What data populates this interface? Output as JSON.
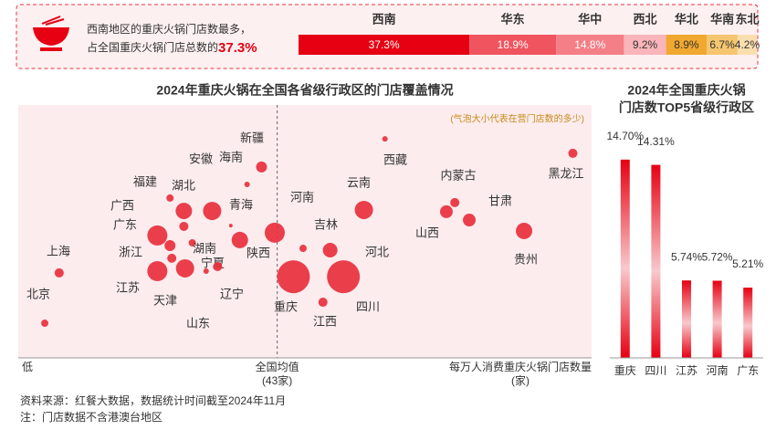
{
  "banner": {
    "lines": [
      "西南地区的重庆火锅门店数最多，",
      "占全国重庆火锅门店总数的"
    ],
    "highlight": "37.3%"
  },
  "chart_data": [
    {
      "type": "stacked_bar",
      "categories": [
        "西南",
        "华东",
        "华中",
        "西北",
        "华北",
        "华南",
        "东北"
      ],
      "values": [
        37.3,
        18.9,
        14.8,
        9.2,
        8.9,
        6.7,
        4.2
      ],
      "value_labels": [
        "37.3%",
        "18.9%",
        "14.8%",
        "9.2%",
        "8.9%",
        "6.7%",
        "4.2%"
      ],
      "colors": [
        "#e60012",
        "#f0545e",
        "#f47f86",
        "#f9b5b9",
        "#f0a830",
        "#f5c66f",
        "#fadfae"
      ],
      "xlim": [
        0,
        100
      ]
    },
    {
      "type": "bubble",
      "title": "2024年重庆火锅在全国各省级行政区的门店覆盖情况",
      "subtitle": "(气泡大小代表在营门店数的多少)",
      "labels": [
        "北京",
        "上海",
        "新疆",
        "海南",
        "安徽",
        "湖北",
        "福建",
        "广西",
        "广东",
        "浙江",
        "湖南",
        "江苏",
        "山东",
        "天津",
        "宁夏",
        "辽宁",
        "青海",
        "陕西",
        "河南",
        "吉林",
        "河北",
        "重庆",
        "四川",
        "江西",
        "云南",
        "西藏",
        "内蒙古",
        "山西",
        "甘肃",
        "黑龙江",
        "贵州"
      ],
      "x": [
        4.4,
        6.8,
        40.4,
        38.0,
        32.2,
        27.5,
        25.2,
        27.5,
        23.1,
        25.2,
        28.9,
        23.1,
        27.7,
        25.5,
        31.2,
        33.1,
        35.3,
        36.8,
        42.6,
        47.3,
        51.8,
        45.7,
        54.0,
        50.6,
        57.4,
        60.9,
        72.5,
        71.1,
        74.9,
        92.1,
        84.0
      ],
      "y": [
        13.7,
        33.6,
        75.5,
        68.6,
        58.1,
        58.1,
        63.2,
        52.0,
        48.4,
        44.4,
        45.5,
        34.3,
        35.4,
        39.4,
        34.3,
        36.1,
        52.3,
        46.6,
        49.5,
        43.3,
        42.6,
        32.1,
        32.1,
        22.0,
        58.5,
        86.6,
        61.4,
        57.8,
        54.5,
        80.9,
        50.2
      ],
      "sizes": [
        16,
        25,
        36,
        9,
        100,
        81,
        16,
        25,
        121,
        36,
        16,
        121,
        100,
        25,
        9,
        25,
        4,
        81,
        121,
        16,
        64,
        324,
        324,
        25,
        100,
        9,
        25,
        49,
        49,
        25,
        81
      ],
      "color": "#e8303d",
      "xlim": [
        0,
        94
      ],
      "ylim": [
        0,
        100
      ],
      "x_low_label": "低",
      "mean": {
        "value": 43,
        "label": "(43家)"
      },
      "mean_title": "全国均值",
      "x_label": [
        "每万人消费重庆火锅门店数量",
        "(家)"
      ]
    },
    {
      "type": "bar",
      "title": [
        "2024年全国重庆火锅",
        "门店数TOP5省级行政区"
      ],
      "categories": [
        "重庆",
        "四川",
        "江苏",
        "河南",
        "广东"
      ],
      "values": [
        14.7,
        14.31,
        5.74,
        5.72,
        5.21
      ],
      "value_labels": [
        "14.70%",
        "14.31%",
        "5.74%",
        "5.72%",
        "5.21%"
      ],
      "color": "#e60012",
      "ylim": [
        0,
        15.5
      ]
    }
  ],
  "footer": [
    "资料来源：红餐大数据，数据统计时间截至2024年11月",
    "注：门店数据不含港澳台地区"
  ]
}
